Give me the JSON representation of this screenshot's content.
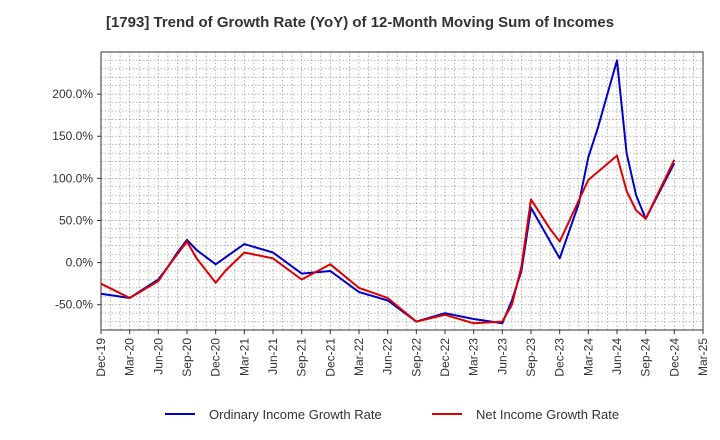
{
  "chart_data": {
    "type": "line",
    "title": "[1793]  Trend of Growth Rate (YoY) of 12-Month Moving Sum of Incomes",
    "xlabel": "",
    "ylabel": "",
    "x_tick_labels": [
      "Dec-19",
      "Mar-20",
      "Jun-20",
      "Sep-20",
      "Dec-20",
      "Mar-21",
      "Jun-21",
      "Sep-21",
      "Dec-21",
      "Mar-22",
      "Jun-22",
      "Sep-22",
      "Dec-22",
      "Mar-23",
      "Jun-23",
      "Sep-23",
      "Dec-23",
      "Mar-24",
      "Jun-24",
      "Sep-24",
      "Dec-24",
      "Mar-25"
    ],
    "y_ticks": [
      -50,
      0,
      50,
      100,
      150,
      200
    ],
    "y_tick_labels": [
      "-50.0%",
      "0.0%",
      "50.0%",
      "100.0%",
      "150.0%",
      "200.0%"
    ],
    "ylim": [
      -80,
      250
    ],
    "x_month_range": [
      0,
      63
    ],
    "grid": true,
    "legend_position": "bottom",
    "series": [
      {
        "name": "Ordinary Income Growth Rate",
        "color": "#0000cc",
        "points": [
          [
            0,
            -37
          ],
          [
            3,
            -42
          ],
          [
            6,
            -20
          ],
          [
            7,
            -5
          ],
          [
            8,
            12
          ],
          [
            9,
            27
          ],
          [
            10,
            15
          ],
          [
            12,
            -2
          ],
          [
            15,
            22
          ],
          [
            18,
            12
          ],
          [
            21,
            -13
          ],
          [
            24,
            -10
          ],
          [
            27,
            -35
          ],
          [
            30,
            -45
          ],
          [
            33,
            -70
          ],
          [
            36,
            -60
          ],
          [
            39,
            -67
          ],
          [
            42,
            -72
          ],
          [
            43,
            -45
          ],
          [
            44,
            -10
          ],
          [
            45,
            65
          ],
          [
            48,
            5
          ],
          [
            50,
            70
          ],
          [
            51,
            125
          ],
          [
            52,
            160
          ],
          [
            53,
            200
          ],
          [
            54,
            240
          ],
          [
            55,
            130
          ],
          [
            56,
            80
          ],
          [
            57,
            52
          ],
          [
            60,
            118
          ]
        ]
      },
      {
        "name": "Net Income Growth Rate",
        "color": "#dd0000",
        "points": [
          [
            0,
            -25
          ],
          [
            3,
            -42
          ],
          [
            6,
            -22
          ],
          [
            7,
            -5
          ],
          [
            8,
            10
          ],
          [
            9,
            25
          ],
          [
            10,
            5
          ],
          [
            12,
            -24
          ],
          [
            13,
            -10
          ],
          [
            15,
            12
          ],
          [
            18,
            5
          ],
          [
            21,
            -20
          ],
          [
            24,
            -2
          ],
          [
            27,
            -30
          ],
          [
            30,
            -42
          ],
          [
            33,
            -70
          ],
          [
            36,
            -62
          ],
          [
            39,
            -72
          ],
          [
            42,
            -70
          ],
          [
            43,
            -50
          ],
          [
            44,
            -5
          ],
          [
            45,
            75
          ],
          [
            47,
            40
          ],
          [
            48,
            25
          ],
          [
            51,
            98
          ],
          [
            54,
            127
          ],
          [
            55,
            85
          ],
          [
            56,
            62
          ],
          [
            57,
            52
          ],
          [
            60,
            122
          ]
        ]
      }
    ]
  }
}
